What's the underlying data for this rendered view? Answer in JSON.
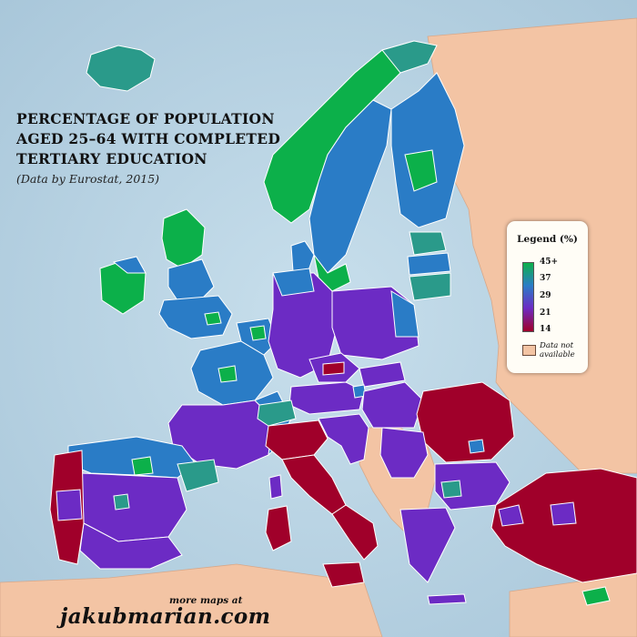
{
  "title": {
    "line1": "PERCENTAGE OF POPULATION",
    "line2": "AGED 25–64 WITH COMPLETED",
    "line3": "TERTIARY EDUCATION",
    "subtitle": "(Data by Eurostat, 2015)"
  },
  "legend": {
    "title": "Legend (%)",
    "ticks": [
      "45+",
      "37",
      "29",
      "21",
      "14"
    ],
    "na_label_line1": "Data not",
    "na_label_line2": "available"
  },
  "credit": {
    "small": "more maps at",
    "big": "jakubmarian.com"
  },
  "colors": {
    "sea": "#b9d3e3",
    "no_data": "#f3c4a4",
    "band_45_plus": "#0cb04a",
    "band_37": "#2a9a8a",
    "band_29": "#2a7cc6",
    "band_21": "#6c2bc4",
    "band_14": "#a0002a",
    "region_border": "#ffffff"
  }
}
